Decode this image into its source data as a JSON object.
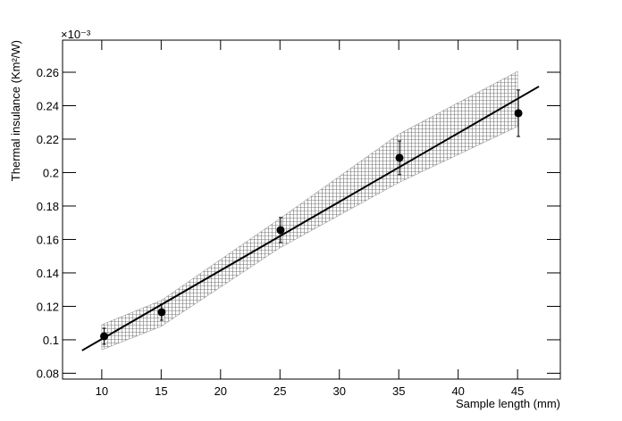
{
  "chart_data": {
    "type": "scatter",
    "xlabel": "Sample length (mm)",
    "ylabel": "Thermal insulance (Km²/W)",
    "y_multiplier": "×10⁻³",
    "xlim": [
      6.7,
      48.6
    ],
    "xticks": [
      10,
      15,
      20,
      25,
      30,
      35,
      40,
      45
    ],
    "ylim": [
      0.0765,
      0.2792
    ],
    "yticks": [
      0.08,
      0.1,
      0.12,
      0.14,
      0.16,
      0.18,
      0.2,
      0.22,
      0.24,
      0.26
    ],
    "points": {
      "color": "#000000",
      "x": [
        10.2,
        15.04,
        25.05,
        35.06,
        45.07
      ],
      "y": [
        0.1021,
        0.1165,
        0.1656,
        0.2088,
        0.2355
      ],
      "yerr": [
        0.0048,
        0.0048,
        0.0075,
        0.0101,
        0.0139
      ]
    },
    "fit": {
      "color": "#000000",
      "x": [
        8.34,
        46.8
      ],
      "y": [
        0.0936,
        0.2515
      ]
    },
    "band": {
      "color": "#888888",
      "x": [
        10,
        15,
        25,
        35,
        45
      ],
      "lower": [
        0.094,
        0.108,
        0.155,
        0.194,
        0.2275
      ],
      "upper": [
        0.109,
        0.1235,
        0.1725,
        0.223,
        0.2605
      ]
    }
  }
}
